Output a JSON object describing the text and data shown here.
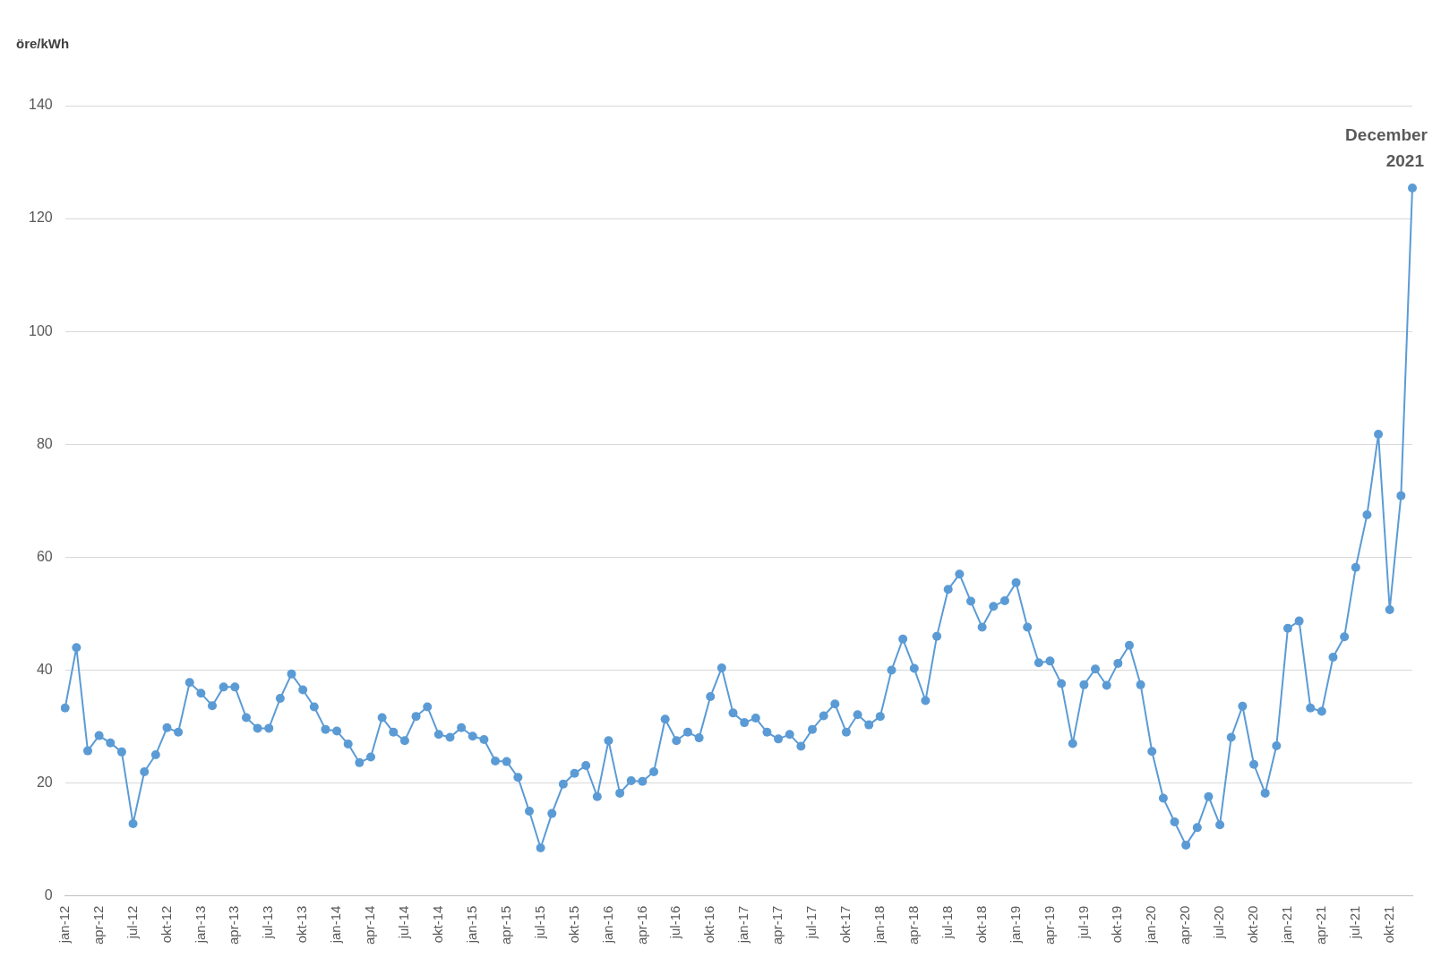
{
  "chart_data": {
    "type": "line",
    "ylabel": "öre/kWh",
    "categories": [
      "jan-12",
      null,
      null,
      "apr-12",
      null,
      null,
      "jul-12",
      null,
      null,
      "okt-12",
      null,
      null,
      "jan-13",
      null,
      null,
      "apr-13",
      null,
      null,
      "jul-13",
      null,
      null,
      "okt-13",
      null,
      null,
      "jan-14",
      null,
      null,
      "apr-14",
      null,
      null,
      "jul-14",
      null,
      null,
      "okt-14",
      null,
      null,
      "jan-15",
      null,
      null,
      "apr-15",
      null,
      null,
      "jul-15",
      null,
      null,
      "okt-15",
      null,
      null,
      "jan-16",
      null,
      null,
      "apr-16",
      null,
      null,
      "jul-16",
      null,
      null,
      "okt-16",
      null,
      null,
      "jan-17",
      null,
      null,
      "apr-17",
      null,
      null,
      "jul-17",
      null,
      null,
      "okt-17",
      null,
      null,
      "jan-18",
      null,
      null,
      "apr-18",
      null,
      null,
      "jul-18",
      null,
      null,
      "okt-18",
      null,
      null,
      "jan-19",
      null,
      null,
      "apr-19",
      null,
      null,
      "jul-19",
      null,
      null,
      "okt-19",
      null,
      null,
      "jan-20",
      null,
      null,
      "apr-20",
      null,
      null,
      "jul-20",
      null,
      null,
      "okt-20",
      null,
      null,
      "jan-21",
      null,
      null,
      "apr-21",
      null,
      null,
      "jul-21",
      null,
      null,
      "okt-21",
      null,
      null
    ],
    "series": [
      {
        "color": "#5b9bd5",
        "values": [
          33.3,
          44,
          25.7,
          28.4,
          27.1,
          25.5,
          12.8,
          22,
          25,
          29.8,
          29,
          37.8,
          35.9,
          33.7,
          37,
          37,
          31.6,
          29.7,
          29.7,
          35,
          39.3,
          36.5,
          33.5,
          29.5,
          29.2,
          26.9,
          23.6,
          24.6,
          31.6,
          29,
          27.5,
          31.8,
          33.5,
          28.6,
          28.1,
          29.8,
          28.3,
          27.7,
          23.9,
          23.8,
          21,
          15,
          8.5,
          14.6,
          19.8,
          21.7,
          23.1,
          17.6,
          27.5,
          18.2,
          20.4,
          20.3,
          22,
          31.3,
          27.5,
          29,
          28,
          35.3,
          40.4,
          32.4,
          30.7,
          31.5,
          29,
          27.8,
          28.6,
          26.5,
          29.5,
          31.9,
          34,
          29,
          32.1,
          30.3,
          31.8,
          40,
          45.5,
          40.3,
          34.6,
          46,
          54.3,
          57,
          52.2,
          47.6,
          51.3,
          52.3,
          55.5,
          47.6,
          41.3,
          41.6,
          37.6,
          27,
          37.4,
          40.2,
          37.3,
          41.2,
          44.4,
          37.4,
          25.6,
          17.3,
          13.1,
          9,
          12.1,
          17.6,
          12.6,
          28.1,
          33.6,
          23.3,
          18.2,
          26.6,
          47.4,
          48.7,
          33.3,
          32.7,
          42.3,
          45.9,
          58.2,
          67.5,
          81.8,
          50.7,
          70.9,
          125.4
        ]
      }
    ],
    "ylim": [
      0,
      140
    ],
    "yticks": [
      0,
      20,
      40,
      60,
      80,
      100,
      120,
      140
    ],
    "grid": "y",
    "legend": false,
    "marker": "circle",
    "line_style": "solid",
    "annotations": [
      "December 2021"
    ]
  }
}
